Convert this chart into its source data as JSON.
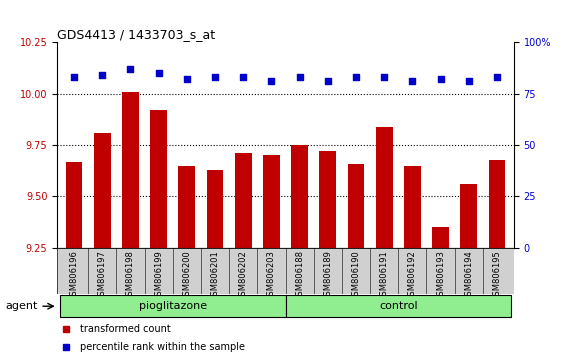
{
  "title": "GDS4413 / 1433703_s_at",
  "samples": [
    "GSM806196",
    "GSM806197",
    "GSM806198",
    "GSM806199",
    "GSM806200",
    "GSM806201",
    "GSM806202",
    "GSM806203",
    "GSM806188",
    "GSM806189",
    "GSM806190",
    "GSM806191",
    "GSM806192",
    "GSM806193",
    "GSM806194",
    "GSM806195"
  ],
  "transformed_count": [
    9.67,
    9.81,
    10.01,
    9.92,
    9.65,
    9.63,
    9.71,
    9.7,
    9.75,
    9.72,
    9.66,
    9.84,
    9.65,
    9.35,
    9.56,
    9.68
  ],
  "percentile_rank": [
    83,
    84,
    87,
    85,
    82,
    83,
    83,
    81,
    83,
    81,
    83,
    83,
    81,
    82,
    81,
    83
  ],
  "bar_color": "#c00000",
  "dot_color": "#0000cc",
  "left_ylim": [
    9.25,
    10.25
  ],
  "left_yticks": [
    9.25,
    9.5,
    9.75,
    10.0,
    10.25
  ],
  "right_ylim": [
    0,
    100
  ],
  "right_yticks": [
    0,
    25,
    50,
    75,
    100
  ],
  "right_yticklabels": [
    "0",
    "25",
    "50",
    "75",
    "100%"
  ],
  "grid_lines": [
    9.5,
    9.75,
    10.0
  ],
  "group_color": "#90ee90",
  "agent_label": "agent",
  "legend_bar_label": "transformed count",
  "legend_dot_label": "percentile rank within the sample",
  "bar_width": 0.6,
  "bg_color": "#ffffff",
  "tick_label_fontsize": 7,
  "title_fontsize": 9
}
